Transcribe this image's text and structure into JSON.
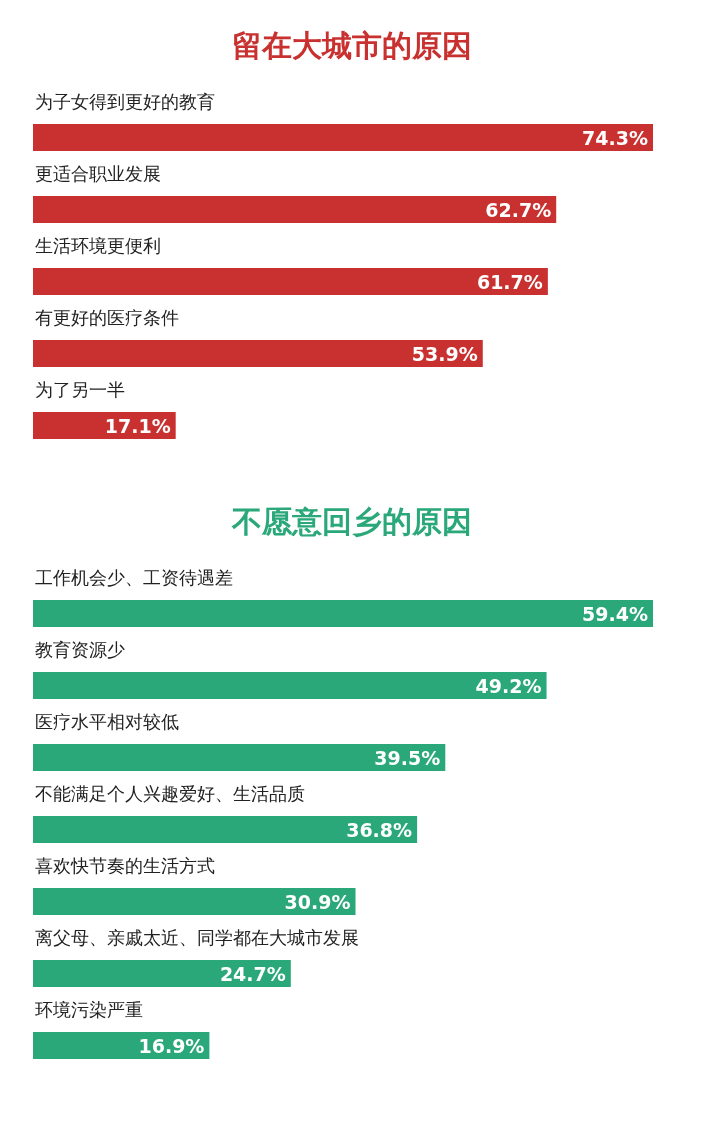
{
  "chart_data": [
    {
      "type": "bar",
      "orientation": "horizontal",
      "title": "留在大城市的原因",
      "categories": [
        "为子女得到更好的教育",
        "更适合职业发展",
        "生活环境更便利",
        "有更好的医疗条件",
        "为了另一半"
      ],
      "values": [
        74.3,
        62.7,
        61.7,
        53.9,
        17.1
      ],
      "value_labels": [
        "74.3%",
        "62.7%",
        "61.7%",
        "53.9%",
        "17.1%"
      ],
      "color": "#c8312f"
    },
    {
      "type": "bar",
      "orientation": "horizontal",
      "title": "不愿意回乡的原因",
      "categories": [
        "工作机会少、工资待遇差",
        "教育资源少",
        "医疗水平相对较低",
        "不能满足个人兴趣爱好、生活品质",
        "喜欢快节奏的生活方式",
        "离父母、亲戚太近、同学都在大城市发展",
        "环境污染严重"
      ],
      "values": [
        59.4,
        49.2,
        39.5,
        36.8,
        30.9,
        24.7,
        16.9
      ],
      "value_labels": [
        "59.4%",
        "49.2%",
        "39.5%",
        "36.8%",
        "30.9%",
        "24.7%",
        "16.9%"
      ],
      "color": "#2aa87a"
    }
  ]
}
